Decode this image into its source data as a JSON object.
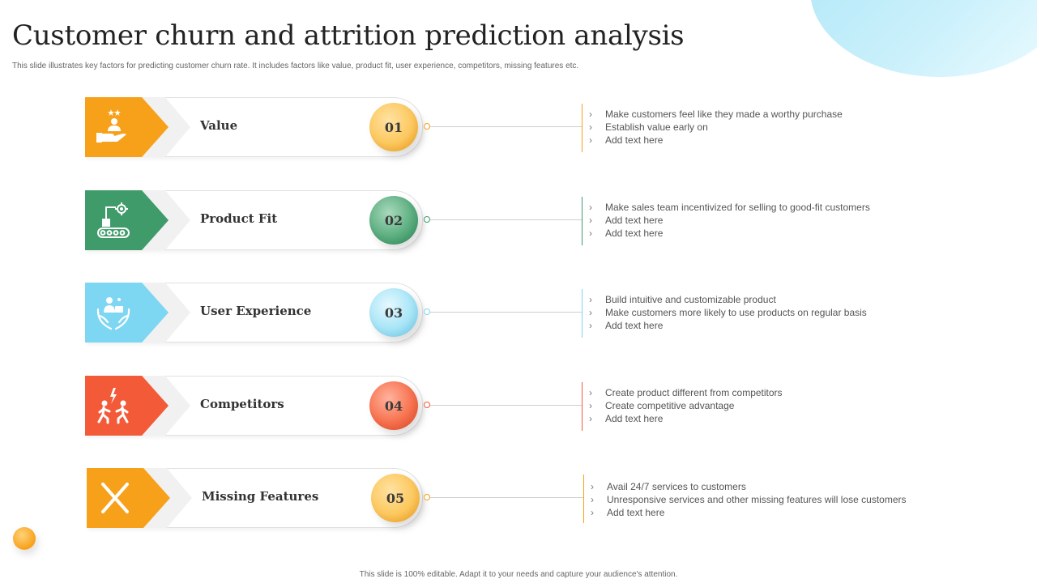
{
  "title": "Customer churn and attrition prediction analysis",
  "subtitle": "This slide illustrates key factors for predicting customer churn rate. It includes factors like value, product fit, user experience, competitors, missing features etc.",
  "footer": "This slide is 100% editable. Adapt it to your needs and capture your audience's attention.",
  "colors": {
    "orange": "#F7A11B",
    "green": "#3F9C6A",
    "light_blue": "#7DD6F2",
    "red": "#F25A38"
  },
  "items": [
    {
      "label": "Value",
      "number": "01",
      "color": "#F7A11B",
      "icon": "value-hand-person-stars-icon",
      "bullets": [
        "Make customers feel like they made a worthy purchase",
        "Establish value  early on",
        "Add text here"
      ]
    },
    {
      "label": "Product Fit",
      "number": "02",
      "color": "#3F9C6A",
      "icon": "conveyor-robot-arm-icon",
      "bullets": [
        "Make sales team incentivized for selling to good-fit customers",
        "Add text here",
        "Add text here"
      ]
    },
    {
      "label": "User Experience",
      "number": "03",
      "color": "#7DD6F2",
      "icon": "hands-holding-user-icon",
      "bullets": [
        "Build intuitive and customizable product",
        "Make customers more likely to use products on regular basis",
        "Add text here"
      ]
    },
    {
      "label": "Competitors",
      "number": "04",
      "color": "#F25A38",
      "icon": "competing-runners-icon",
      "bullets": [
        "Create product different from competitors",
        "Create competitive advantage",
        "Add text here"
      ]
    },
    {
      "label": "Missing Features",
      "number": "05",
      "color": "#F7A11B",
      "icon": "cross-x-icon",
      "bullets": [
        "Avail 24/7 services to customers",
        "Unresponsive  services and other missing features will lose customers",
        "Add text here"
      ]
    }
  ]
}
